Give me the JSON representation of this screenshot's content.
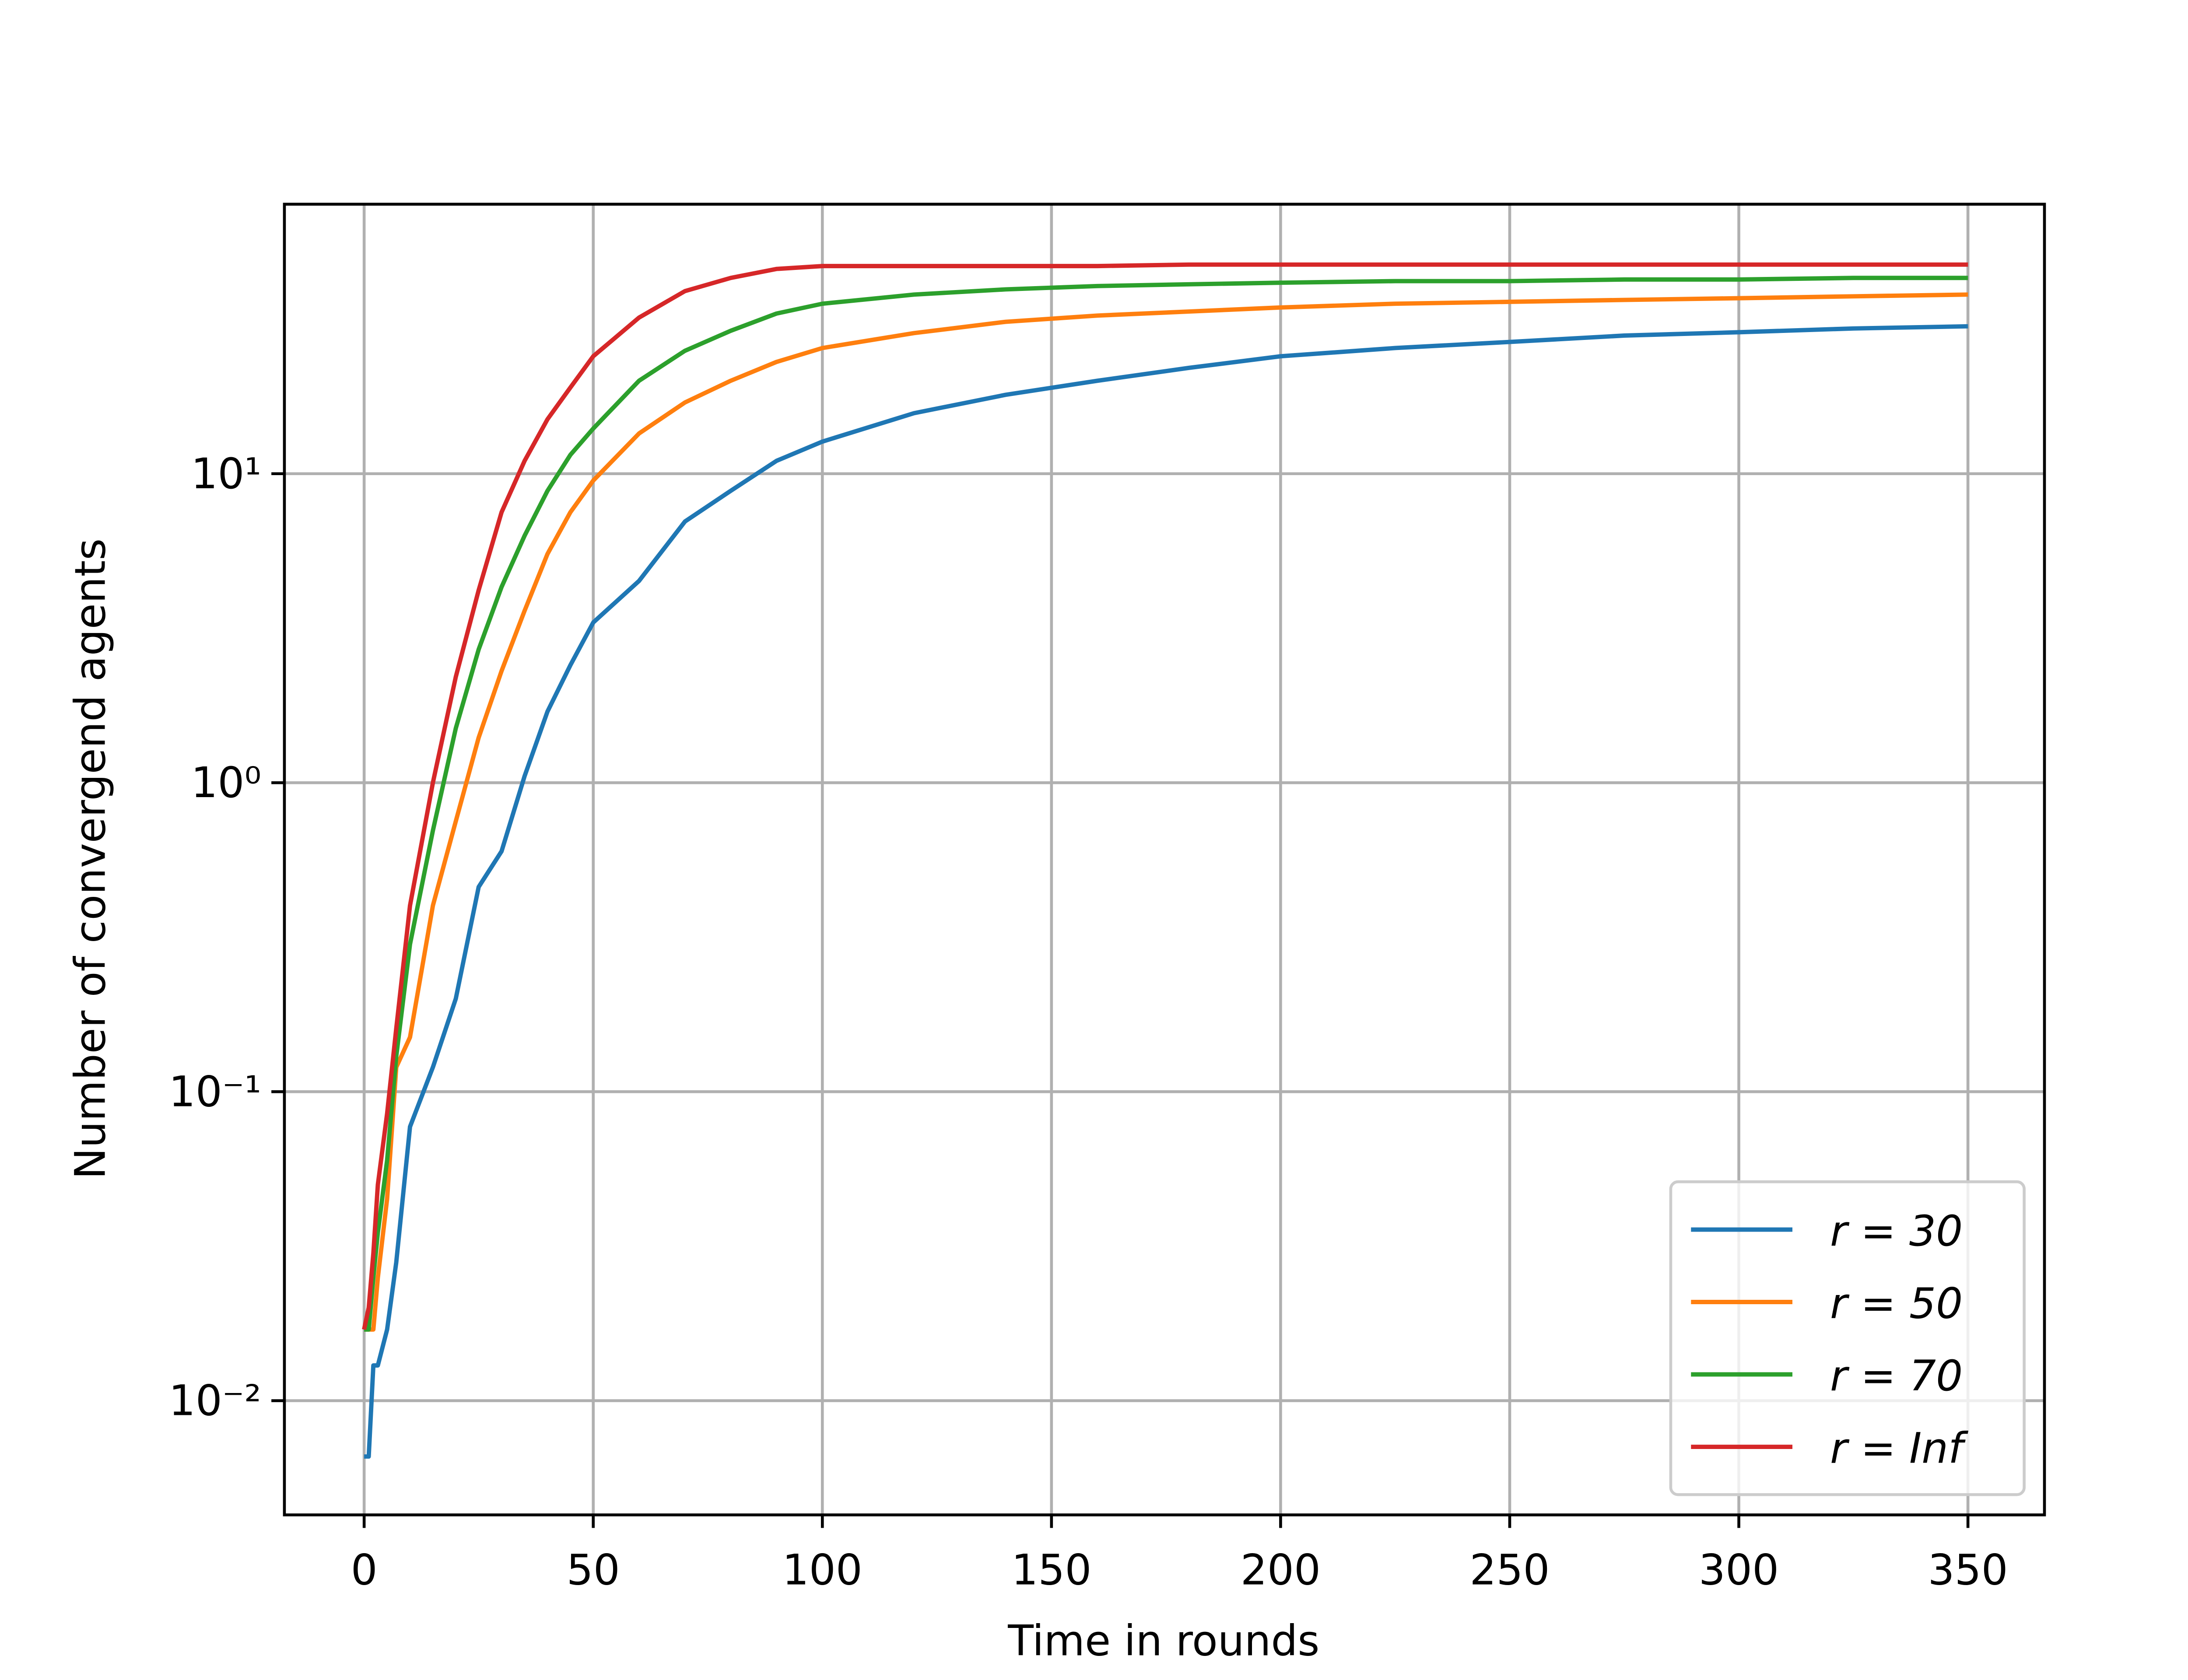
{
  "chart_data": {
    "type": "line",
    "xlabel": "Time in rounds",
    "ylabel": "Number of convergend agents",
    "x": [
      0,
      1,
      2,
      3,
      5,
      7,
      10,
      15,
      20,
      25,
      30,
      35,
      40,
      45,
      50,
      60,
      70,
      80,
      90,
      100,
      120,
      140,
      160,
      180,
      200,
      225,
      250,
      275,
      300,
      325,
      350
    ],
    "series": [
      {
        "name": "r = 30",
        "color": "#1f77b4",
        "values": [
          0.0066,
          0.0066,
          0.013,
          0.013,
          0.017,
          0.028,
          0.077,
          0.12,
          0.2,
          0.46,
          0.6,
          1.05,
          1.7,
          2.4,
          3.3,
          4.5,
          7.0,
          8.8,
          11,
          12.7,
          15.7,
          18,
          20,
          22,
          24,
          25.5,
          26.7,
          28,
          28.7,
          29.5,
          30
        ]
      },
      {
        "name": "r = 50",
        "color": "#ff7f0e",
        "values": [
          0.017,
          0.017,
          0.017,
          0.025,
          0.045,
          0.12,
          0.15,
          0.4,
          0.75,
          1.4,
          2.3,
          3.6,
          5.5,
          7.5,
          9.5,
          13.5,
          17,
          20,
          23,
          25.5,
          28.5,
          31,
          32.5,
          33.5,
          34.5,
          35.5,
          36,
          36.5,
          37,
          37.5,
          38
        ]
      },
      {
        "name": "r = 70",
        "color": "#2ca02c",
        "values": [
          0.017,
          0.017,
          0.025,
          0.035,
          0.06,
          0.13,
          0.3,
          0.7,
          1.5,
          2.7,
          4.3,
          6.3,
          8.8,
          11.5,
          14,
          20,
          25,
          29,
          33,
          35.5,
          38,
          39.5,
          40.5,
          41,
          41.5,
          42,
          42,
          42.5,
          42.5,
          43,
          43
        ]
      },
      {
        "name": "r = Inf",
        "color": "#d62728",
        "values": [
          0.017,
          0.02,
          0.03,
          0.05,
          0.085,
          0.16,
          0.4,
          1.0,
          2.2,
          4.2,
          7.5,
          11,
          15,
          19,
          24,
          32,
          39,
          43,
          46,
          47,
          47,
          47,
          47,
          47.5,
          47.5,
          47.5,
          47.5,
          47.5,
          47.5,
          47.5,
          47.5
        ]
      }
    ],
    "xlim": [
      -17.4,
      366.7
    ],
    "xticks": [
      0,
      50,
      100,
      150,
      200,
      250,
      300,
      350
    ],
    "ylim": [
      0.00427,
      74.5
    ],
    "yscale": "log",
    "yticks": [
      {
        "value": 0.01,
        "label": "10⁻²"
      },
      {
        "value": 0.1,
        "label": "10⁻¹"
      },
      {
        "value": 1,
        "label": "10⁰"
      },
      {
        "value": 10,
        "label": "10¹"
      }
    ],
    "grid": true,
    "legend": "lower right"
  }
}
